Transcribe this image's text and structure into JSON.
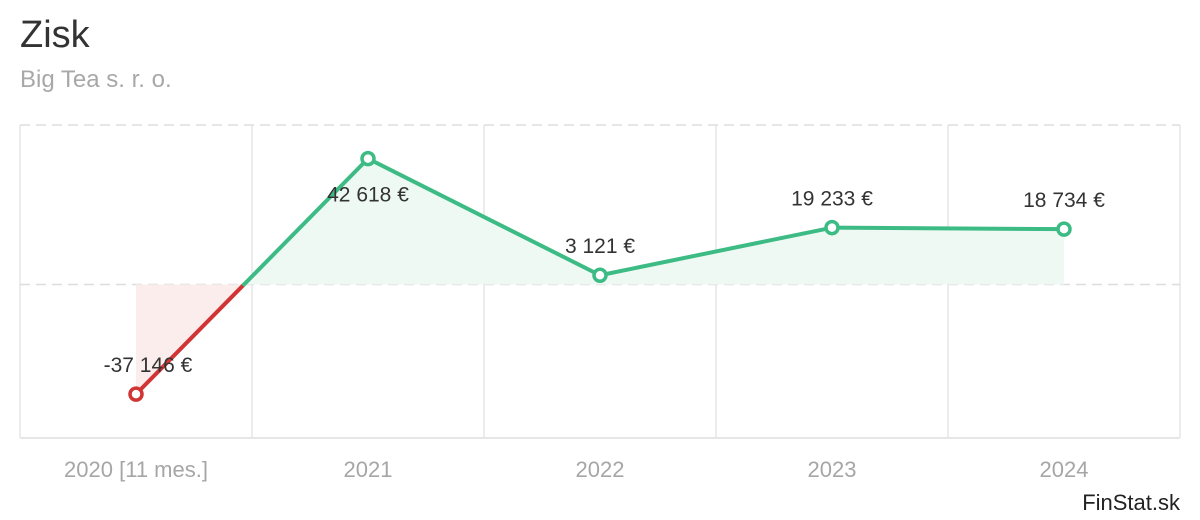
{
  "title": "Zisk",
  "subtitle": "Big Tea s. r. o.",
  "credit": "FinStat.sk",
  "colors": {
    "positive_line": "#3dbb84",
    "positive_fill": "#eef9f4",
    "negative_line": "#d13434",
    "negative_fill": "#fbedec",
    "grid": "#e6e6e6",
    "zero_line": "#dddddd"
  },
  "chart_data": {
    "type": "line",
    "categories": [
      "2020 [11 mes.]",
      "2021",
      "2022",
      "2023",
      "2024"
    ],
    "values": [
      -37146,
      42618,
      3121,
      19233,
      18734
    ],
    "value_labels": [
      "-37 146 €",
      "42 618 €",
      "3 121 €",
      "19 233 €",
      "18 734 €"
    ],
    "ylim": [
      -52000,
      54000
    ],
    "grid": true,
    "legend": "none"
  }
}
